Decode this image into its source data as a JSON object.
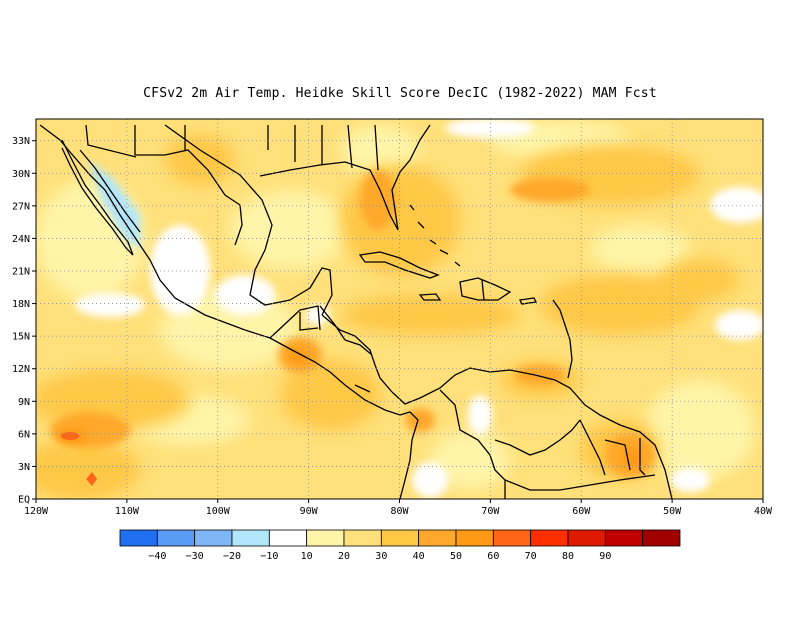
{
  "title": "CFSv2  2m Air Temp. Heidke Skill Score DecIC (1982-2022) MAM Fcst",
  "map": {
    "projection": "lat-lon",
    "lon_range": [
      -120,
      -40
    ],
    "lat_range": [
      0,
      35
    ],
    "lat_ticks": [
      {
        "value": 33,
        "label": "33N"
      },
      {
        "value": 30,
        "label": "30N"
      },
      {
        "value": 27,
        "label": "27N"
      },
      {
        "value": 24,
        "label": "24N"
      },
      {
        "value": 21,
        "label": "21N"
      },
      {
        "value": 18,
        "label": "18N"
      },
      {
        "value": 15,
        "label": "15N"
      },
      {
        "value": 12,
        "label": "12N"
      },
      {
        "value": 9,
        "label": "9N"
      },
      {
        "value": 6,
        "label": "6N"
      },
      {
        "value": 3,
        "label": "3N"
      },
      {
        "value": 0,
        "label": "EQ"
      }
    ],
    "lon_ticks": [
      {
        "value": -120,
        "label": "120W"
      },
      {
        "value": -110,
        "label": "110W"
      },
      {
        "value": -100,
        "label": "100W"
      },
      {
        "value": -90,
        "label": "90W"
      },
      {
        "value": -80,
        "label": "80W"
      },
      {
        "value": -70,
        "label": "70W"
      },
      {
        "value": -60,
        "label": "60W"
      },
      {
        "value": -50,
        "label": "50W"
      },
      {
        "value": -40,
        "label": "40W"
      }
    ],
    "grid": "dotted"
  },
  "colorbar": {
    "colors": [
      "#1f6ff0",
      "#5a9cf5",
      "#7fb6f5",
      "#b2e6fa",
      "#ffffff",
      "#fff4a8",
      "#ffe07a",
      "#ffc846",
      "#ffa82c",
      "#ff9a14",
      "#ff6618",
      "#ff2e00",
      "#e01a00",
      "#c00000",
      "#a00000"
    ],
    "labels": [
      "-40",
      "-30",
      "-20",
      "-10",
      "10",
      "20",
      "30",
      "40",
      "50",
      "60",
      "70",
      "80",
      "90"
    ]
  }
}
